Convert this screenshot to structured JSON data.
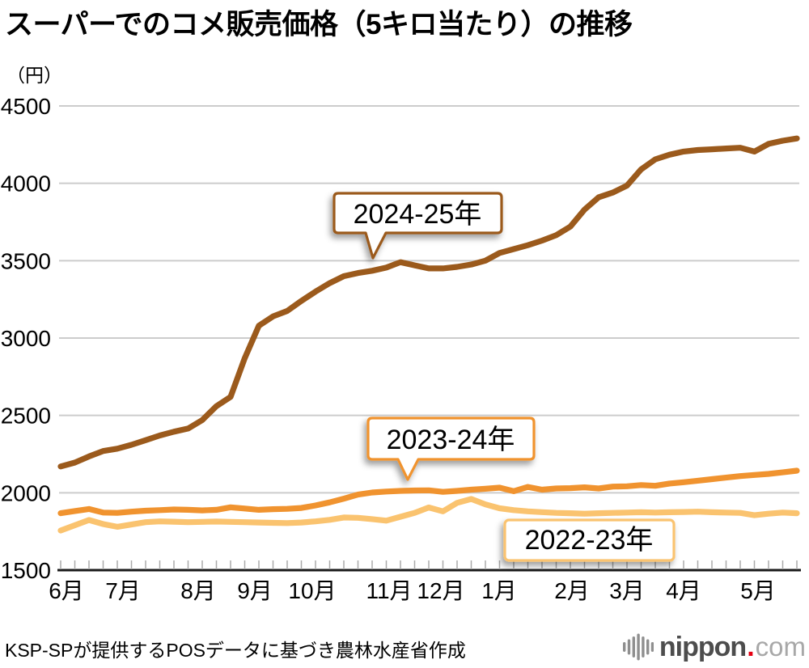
{
  "title": "スーパーでのコメ販売価格（5キロ当たり）の推移",
  "unit_label": "（円）",
  "footer": {
    "source": "KSP-SPが提供するPOSデータに基づき農林水産省作成",
    "logo": {
      "name": "nippon",
      "dot": ".",
      "tld": "com"
    }
  },
  "colors": {
    "series_2024_25": "#9B5A1C",
    "series_2023_24": "#F0932F",
    "series_2022_23": "#FAC36F",
    "gridline": "#cccccc",
    "axis": "#1a1a1a",
    "tick": "#aaaaaa",
    "logo_dark": "#4d4d4d",
    "logo_light": "#a8a8a8",
    "logo_red": "#e60012"
  },
  "chart_data": {
    "type": "line",
    "title": "スーパーでのコメ販売価格（5キロ当たり）の推移",
    "ylabel": "円",
    "ylim": [
      1500,
      4500
    ],
    "yticks": [
      1500,
      2000,
      2500,
      3000,
      3500,
      4000,
      4500
    ],
    "grid": "horizontal",
    "x_tick_unit": "week",
    "x_tick_count": 53,
    "categories": [
      "6月",
      "7月",
      "8月",
      "9月",
      "10月",
      "11月",
      "12月",
      "1月",
      "2月",
      "3月",
      "4月",
      "5月"
    ],
    "legend_position": "inline-callouts",
    "series": [
      {
        "name": "2024-25年",
        "color": "#9B5A1C",
        "values": [
          2170,
          2195,
          2235,
          2270,
          2285,
          2310,
          2340,
          2370,
          2395,
          2415,
          2470,
          2560,
          2620,
          2870,
          3080,
          3140,
          3175,
          3240,
          3300,
          3355,
          3400,
          3420,
          3435,
          3455,
          3490,
          3470,
          3450,
          3450,
          3460,
          3475,
          3500,
          3550,
          3575,
          3600,
          3630,
          3665,
          3720,
          3830,
          3910,
          3940,
          3985,
          4090,
          4155,
          4185,
          4205,
          4215,
          4220,
          4225,
          4230,
          4205,
          4255,
          4275,
          4290
        ]
      },
      {
        "name": "2023-24年",
        "color": "#F0932F",
        "values": [
          1868,
          1882,
          1895,
          1872,
          1870,
          1878,
          1884,
          1888,
          1892,
          1890,
          1886,
          1890,
          1906,
          1898,
          1890,
          1894,
          1896,
          1902,
          1918,
          1938,
          1962,
          1988,
          2002,
          2008,
          2012,
          2015,
          2016,
          2006,
          2012,
          2020,
          2026,
          2033,
          2010,
          2038,
          2020,
          2028,
          2030,
          2035,
          2028,
          2040,
          2042,
          2050,
          2045,
          2060,
          2068,
          2078,
          2088,
          2098,
          2108,
          2115,
          2122,
          2132,
          2143
        ]
      },
      {
        "name": "2022-23年",
        "color": "#FAC36F",
        "values": [
          1756,
          1790,
          1824,
          1798,
          1780,
          1795,
          1810,
          1815,
          1813,
          1810,
          1812,
          1814,
          1812,
          1810,
          1808,
          1806,
          1804,
          1808,
          1815,
          1825,
          1840,
          1838,
          1830,
          1820,
          1845,
          1870,
          1905,
          1880,
          1935,
          1960,
          1925,
          1900,
          1888,
          1880,
          1875,
          1870,
          1868,
          1865,
          1868,
          1870,
          1872,
          1874,
          1872,
          1874,
          1876,
          1878,
          1874,
          1872,
          1870,
          1855,
          1865,
          1872,
          1868
        ]
      }
    ],
    "annotations": [
      {
        "label": "2024-25年"
      },
      {
        "label": "2023-24年"
      },
      {
        "label": "2022-23年"
      }
    ]
  }
}
